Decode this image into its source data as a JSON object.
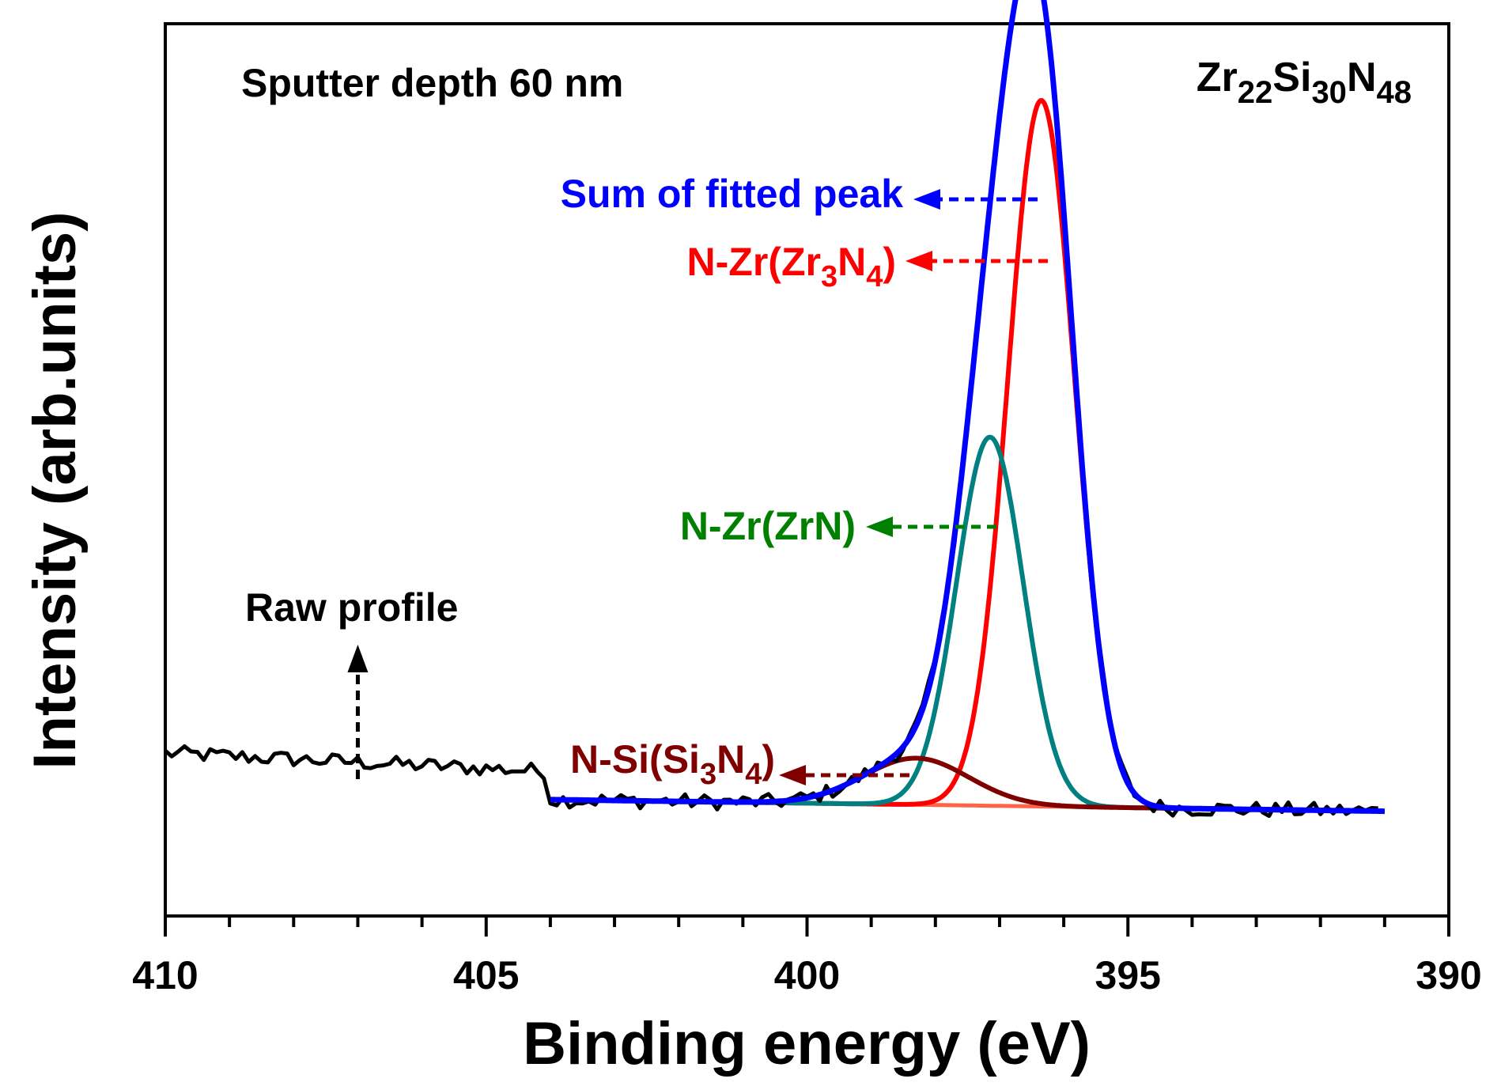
{
  "chart_data": {
    "type": "line",
    "title": "",
    "xlabel": "Binding energy (eV)",
    "ylabel": "Intensity (arb.units)",
    "xlim": [
      410,
      390
    ],
    "x_reversed": true,
    "ylim": [
      -0.3,
      2.0
    ],
    "y_ticks_shown": false,
    "x_major_ticks": [
      410,
      405,
      400,
      395,
      390
    ],
    "x_tick_labels": [
      "410",
      "405",
      "400",
      "395",
      "390"
    ],
    "x_minor_step": 1,
    "annotations": {
      "sample_note": "Sputter depth 60 nm",
      "composition": {
        "base1": "Zr",
        "sub1": "22",
        "base2": "Si",
        "sub2": "30",
        "base3": "N",
        "sub3": "48"
      },
      "raw_label": "Raw profile",
      "sum_label": "Sum of fitted peak",
      "zr3n4_label": {
        "pre": "N-Zr(Zr",
        "sub1": "3",
        "mid": "N",
        "sub2": "4",
        "post": ")"
      },
      "zrn_label": "N-Zr(ZrN)",
      "si3n4_label": {
        "pre": "N-Si(Si",
        "sub1": "3",
        "mid": "N",
        "sub2": "4",
        "post": ")"
      }
    },
    "series": [
      {
        "name": "Raw profile",
        "color": "#000000",
        "kind": "raw",
        "x_range": [
          410,
          391
        ],
        "baseline_start": 0.12,
        "baseline_end": -0.03,
        "noise": 0.02,
        "peaks": [
          {
            "center": 396.55,
            "height": 2.0,
            "sigma": 0.58
          }
        ],
        "max_point": [
          396.55,
          2.0
        ]
      },
      {
        "name": "Sum of fitted peak",
        "color": "#0000ff",
        "kind": "sum",
        "x_range": [
          404,
          391
        ],
        "baseline_start": 0.0,
        "baseline_end": -0.03
      },
      {
        "name": "N-Zr(Zr3N4)",
        "color": "#ff0000",
        "kind": "peak",
        "x_range": [
          404,
          391
        ],
        "center": 396.35,
        "height": 1.82,
        "sigma": 0.52
      },
      {
        "name": "N-Zr(ZrN)",
        "color": "#008080",
        "kind": "peak",
        "x_range": [
          404,
          391
        ],
        "center": 397.15,
        "height": 0.95,
        "sigma": 0.52
      },
      {
        "name": "N-Si(Si3N4)",
        "color": "#800000",
        "kind": "peak",
        "x_range": [
          404,
          391
        ],
        "center": 398.3,
        "height": 0.12,
        "sigma": 0.82
      },
      {
        "name": "Background",
        "color": "#ff6347",
        "kind": "background",
        "x_range": [
          404,
          391
        ],
        "baseline_start": 0.0,
        "baseline_end": -0.03
      }
    ],
    "annotation_colors": {
      "raw": "#000000",
      "sum": "#0000ff",
      "zr3n4": "#ff0000",
      "zrn": "#008000",
      "si3n4": "#800000"
    }
  }
}
